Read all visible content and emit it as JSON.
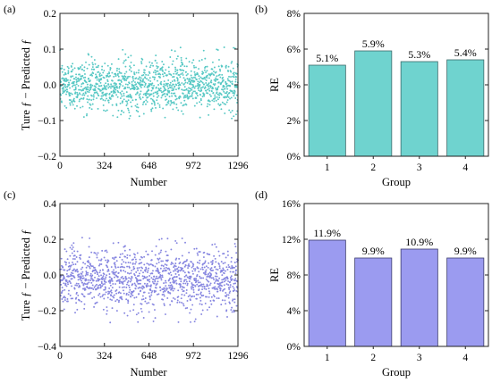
{
  "colors": {
    "scatter_a": "#57c8c4",
    "bar_b": "#6fd3cf",
    "bar_b_edge": "#3b6a6a",
    "scatter_c": "#8686e0",
    "bar_d": "#9b9bf0",
    "bar_d_edge": "#3c3c6e"
  },
  "chart_data": [
    {
      "panel": "(a)",
      "type": "scatter",
      "xlabel": "Number",
      "ylabel": "Ture ƒ − Predicted ƒ",
      "xlim": [
        0,
        1296
      ],
      "ylim": [
        -0.2,
        0.2
      ],
      "xticks": [
        0,
        324,
        648,
        972,
        1296
      ],
      "yticks": [
        -0.2,
        -0.1,
        0.0,
        0.1,
        0.2
      ],
      "xtick_labels": [
        "0",
        "324",
        "648",
        "972",
        "1296"
      ],
      "ytick_labels": [
        "−0.2",
        "−0.1",
        "0.0",
        "0.1",
        "0.2"
      ],
      "n_points": 1296,
      "distribution": {
        "mean": 0.0,
        "std": 0.035,
        "min": -0.095,
        "max": 0.105
      }
    },
    {
      "panel": "(b)",
      "type": "bar",
      "xlabel": "Group",
      "ylabel": "RE",
      "categories": [
        "1",
        "2",
        "3",
        "4"
      ],
      "values": [
        5.1,
        5.9,
        5.3,
        5.4
      ],
      "value_labels": [
        "5.1%",
        "5.9%",
        "5.3%",
        "5.4%"
      ],
      "ylim": [
        0,
        8
      ],
      "yticks": [
        0,
        2,
        4,
        6,
        8
      ],
      "ytick_labels": [
        "0%",
        "2%",
        "4%",
        "6%",
        "8%"
      ]
    },
    {
      "panel": "(c)",
      "type": "scatter",
      "xlabel": "Number",
      "ylabel": "Ture ƒ − Predicted ƒ",
      "xlim": [
        0,
        1296
      ],
      "ylim": [
        -0.4,
        0.4
      ],
      "xticks": [
        0,
        324,
        648,
        972,
        1296
      ],
      "yticks": [
        -0.4,
        -0.2,
        0.0,
        0.2,
        0.4
      ],
      "xtick_labels": [
        "0",
        "324",
        "648",
        "972",
        "1296"
      ],
      "ytick_labels": [
        "−0.4",
        "−0.2",
        "0.0",
        "0.2",
        "0.4"
      ],
      "n_points": 1296,
      "distribution": {
        "mean": -0.02,
        "std": 0.085,
        "min": -0.33,
        "max": 0.21
      }
    },
    {
      "panel": "(d)",
      "type": "bar",
      "xlabel": "Group",
      "ylabel": "RE",
      "categories": [
        "1",
        "2",
        "3",
        "4"
      ],
      "values": [
        11.9,
        9.9,
        10.9,
        9.9
      ],
      "value_labels": [
        "11.9%",
        "9.9%",
        "10.9%",
        "9.9%"
      ],
      "ylim": [
        0,
        16
      ],
      "yticks": [
        0,
        4,
        8,
        12,
        16
      ],
      "ytick_labels": [
        "0%",
        "4%",
        "8%",
        "12%",
        "16%"
      ]
    }
  ]
}
